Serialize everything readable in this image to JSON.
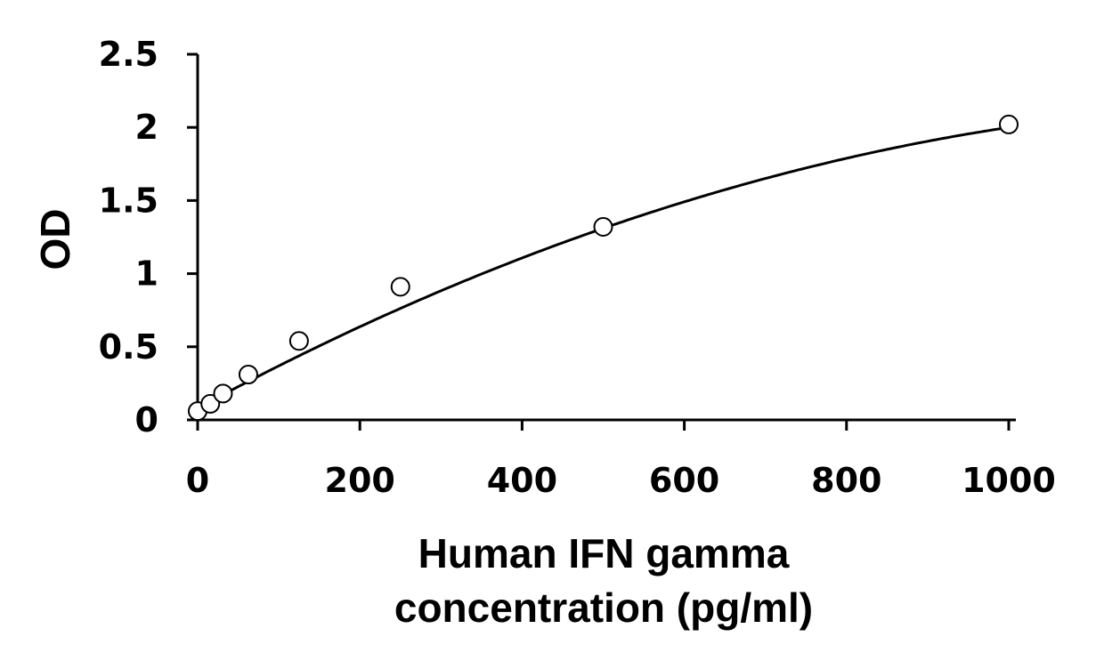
{
  "chart_data": {
    "type": "scatter",
    "title": "",
    "xlabel_lines": [
      "Human IFN gamma",
      "concentration (pg/ml)"
    ],
    "ylabel": "OD",
    "xlim": [
      0,
      1000
    ],
    "ylim": [
      0,
      2.5
    ],
    "x_ticks": [
      0,
      200,
      400,
      600,
      800,
      1000
    ],
    "x_tick_labels": [
      "0",
      "200",
      "400",
      "600",
      "800",
      "1000"
    ],
    "y_ticks": [
      0,
      0.5,
      1,
      1.5,
      2,
      2.5
    ],
    "y_tick_labels": [
      "0",
      "0.5",
      "1",
      "1.5",
      "2",
      "2.5"
    ],
    "grid": false,
    "legend": "none",
    "series": [
      {
        "x": [
          0,
          15.6,
          31.25,
          62.5,
          125,
          250,
          500,
          1000
        ],
        "y": [
          0.06,
          0.11,
          0.18,
          0.31,
          0.54,
          0.91,
          1.32,
          2.02
        ],
        "marker": "open-circle"
      }
    ],
    "fit_curve": {
      "type": "polynomial-2",
      "coefficients": [
        0.08,
        0.003,
        -1.08e-06
      ]
    },
    "colors": {
      "line": "#000000",
      "marker_fill": "#ffffff",
      "marker_stroke": "#000000"
    }
  }
}
